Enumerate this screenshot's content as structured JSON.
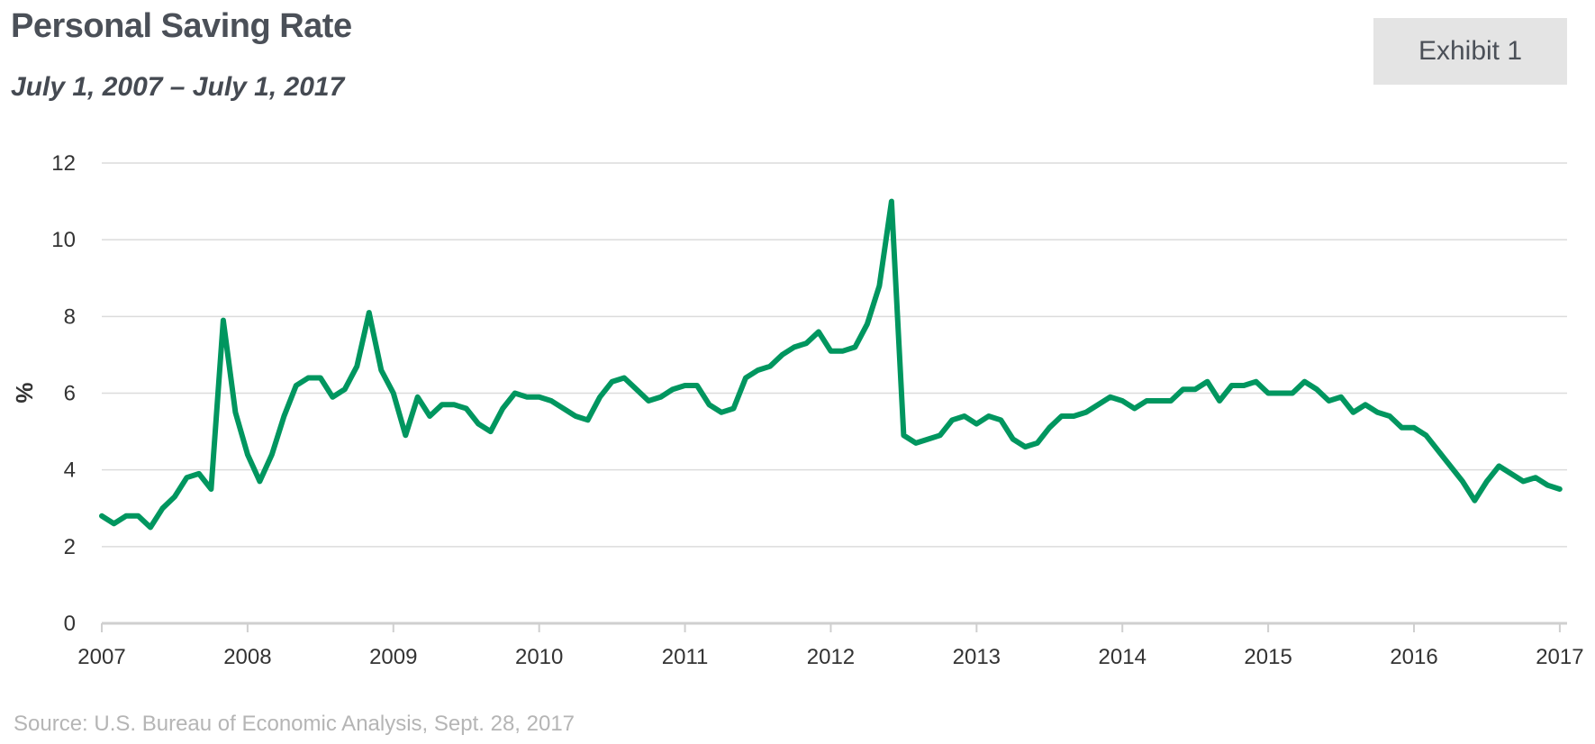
{
  "header": {
    "title": "Personal Saving Rate",
    "subtitle": "July 1, 2007 – July 1, 2017",
    "exhibit_label": "Exhibit 1"
  },
  "footer": {
    "source": "Source: U.S. Bureau of Economic Analysis, Sept. 28, 2017"
  },
  "colors": {
    "line": "#00965f",
    "grid": "#dcdcdc",
    "axis": "#cfcfcf"
  },
  "chart_data": {
    "type": "line",
    "title": "Personal Saving Rate",
    "subtitle": "July 1, 2007 – July 1, 2017",
    "xlabel": "",
    "ylabel": "%",
    "ylim": [
      0,
      12
    ],
    "xlim": [
      2007,
      2017.05
    ],
    "y_ticks": [
      "0",
      "2",
      "4",
      "6",
      "8",
      "10",
      "12"
    ],
    "x_ticks": [
      "2007",
      "2008",
      "2009",
      "2010",
      "2011",
      "2012",
      "2013",
      "2014",
      "2015",
      "2016",
      "2017"
    ],
    "grid": true,
    "legend": "none",
    "series": [
      {
        "color": "#00965f",
        "x_start": 2007.0,
        "x_step": 0.08333,
        "values": [
          2.8,
          2.6,
          2.8,
          2.8,
          2.5,
          3.0,
          3.3,
          3.8,
          3.9,
          3.5,
          7.9,
          5.5,
          4.4,
          3.7,
          4.4,
          5.4,
          6.2,
          6.4,
          6.4,
          5.9,
          6.1,
          6.7,
          8.1,
          6.6,
          6.0,
          4.9,
          5.9,
          5.4,
          5.7,
          5.7,
          5.6,
          5.2,
          5.0,
          5.6,
          6.0,
          5.9,
          5.9,
          5.8,
          5.6,
          5.4,
          5.3,
          5.9,
          6.3,
          6.4,
          6.1,
          5.8,
          5.9,
          6.1,
          6.2,
          6.2,
          5.7,
          5.5,
          5.6,
          6.4,
          6.6,
          6.7,
          7.0,
          7.2,
          7.3,
          7.6,
          7.1,
          7.1,
          7.2,
          7.8,
          8.8,
          11.0,
          4.9,
          4.7,
          4.8,
          4.9,
          5.3,
          5.4,
          5.2,
          5.4,
          5.3,
          4.8,
          4.6,
          4.7,
          5.1,
          5.4,
          5.4,
          5.5,
          5.7,
          5.9,
          5.8,
          5.6,
          5.8,
          5.8,
          5.8,
          6.1,
          6.1,
          6.3,
          5.8,
          6.2,
          6.2,
          6.3,
          6.0,
          6.0,
          6.0,
          6.3,
          6.1,
          5.8,
          5.9,
          5.5,
          5.7,
          5.5,
          5.4,
          5.1,
          5.1,
          4.9,
          4.5,
          4.1,
          3.7,
          3.2,
          3.7,
          4.1,
          3.9,
          3.7,
          3.8,
          3.6,
          3.5
        ]
      }
    ]
  }
}
